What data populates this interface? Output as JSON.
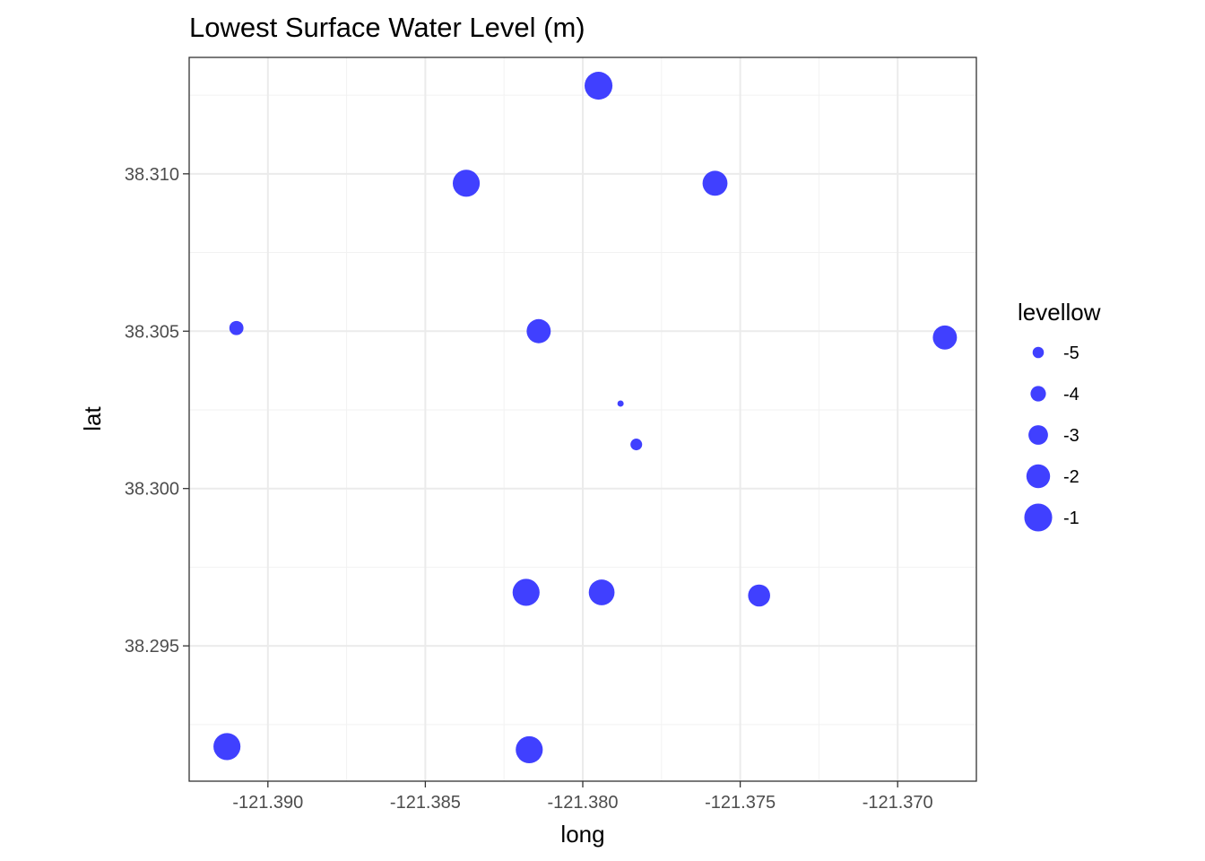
{
  "chart_data": {
    "type": "scatter",
    "title": "Lowest Surface Water Level (m)",
    "xlabel": "long",
    "ylabel": "lat",
    "xlim": [
      -121.3925,
      -121.3675
    ],
    "ylim": [
      38.2907,
      38.3137
    ],
    "x_ticks": [
      -121.39,
      -121.385,
      -121.38,
      -121.375,
      -121.37
    ],
    "x_tick_labels": [
      "-121.390",
      "-121.385",
      "-121.380",
      "-121.375",
      "-121.370"
    ],
    "y_ticks": [
      38.295,
      38.3,
      38.305,
      38.31
    ],
    "y_tick_labels": [
      "38.295",
      "38.300",
      "38.305",
      "38.310"
    ],
    "grid": true,
    "point_color": "#4040ff",
    "legend": {
      "title": "levellow",
      "placement": "right",
      "values": [
        -5,
        -4,
        -3,
        -2,
        -1
      ],
      "labels": [
        "-5",
        "-4",
        "-3",
        "-2",
        "-1"
      ]
    },
    "size_scale": {
      "min_level": -6.2,
      "max_level": -0.8
    },
    "points": [
      {
        "x": -121.3795,
        "y": 38.3128,
        "levellow": -1.0
      },
      {
        "x": -121.3837,
        "y": 38.3097,
        "levellow": -1.2
      },
      {
        "x": -121.3758,
        "y": 38.3097,
        "levellow": -1.7
      },
      {
        "x": -121.391,
        "y": 38.3051,
        "levellow": -4.3
      },
      {
        "x": -121.3814,
        "y": 38.305,
        "levellow": -1.9
      },
      {
        "x": -121.3685,
        "y": 38.3048,
        "levellow": -1.9
      },
      {
        "x": -121.3788,
        "y": 38.3027,
        "levellow": -6.2
      },
      {
        "x": -121.3783,
        "y": 38.3014,
        "levellow": -4.9
      },
      {
        "x": -121.3818,
        "y": 38.2967,
        "levellow": -1.2
      },
      {
        "x": -121.3794,
        "y": 38.2967,
        "levellow": -1.5
      },
      {
        "x": -121.3744,
        "y": 38.2966,
        "levellow": -2.4
      },
      {
        "x": -121.3913,
        "y": 38.2918,
        "levellow": -1.2
      },
      {
        "x": -121.3817,
        "y": 38.2917,
        "levellow": -1.2
      }
    ]
  }
}
